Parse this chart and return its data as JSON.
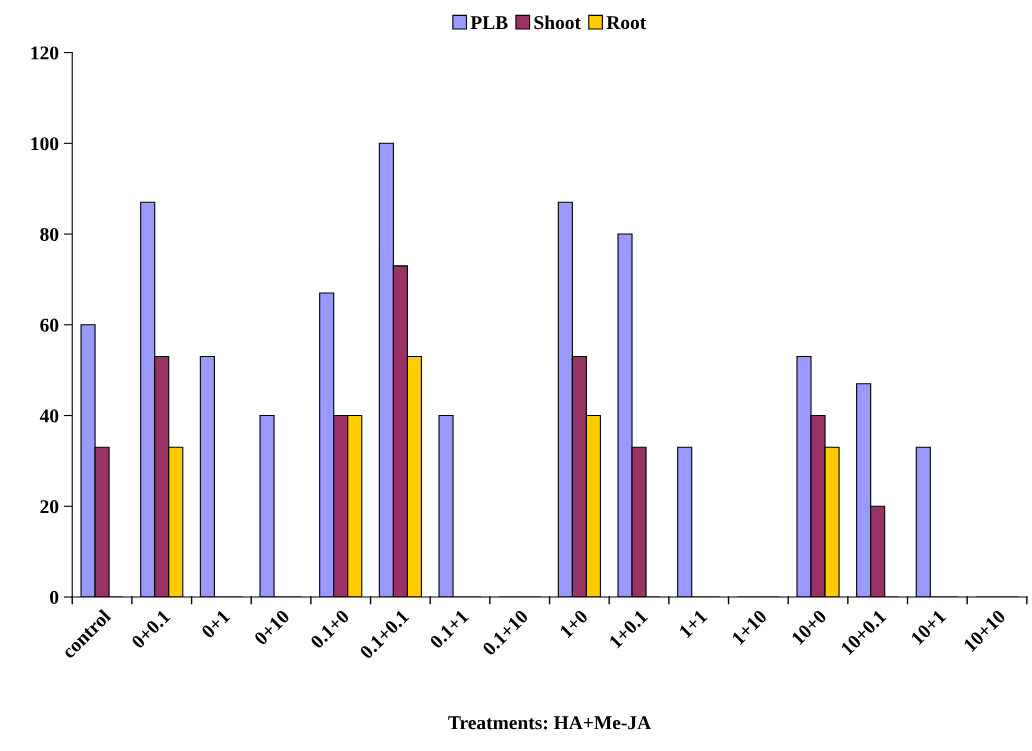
{
  "chart_data": {
    "type": "bar",
    "xlabel": "Treatments: HA+Me-JA",
    "categories": [
      "control",
      "0+0.1",
      "0+1",
      "0+10",
      "0.1+0",
      "0.1+0.1",
      "0.1+1",
      "0.1+10",
      "1+0",
      "1+0.1",
      "1+1",
      "1+10",
      "10+0",
      "10+0.1",
      "10+1",
      "10+10"
    ],
    "series": [
      {
        "name": "PLB",
        "color": "#9999ff",
        "values": [
          60,
          87,
          53,
          40,
          67,
          100,
          40,
          0,
          87,
          80,
          33,
          0,
          53,
          47,
          33,
          0
        ]
      },
      {
        "name": "Shoot",
        "color": "#993366",
        "values": [
          33,
          53,
          0,
          0,
          40,
          73,
          0,
          0,
          53,
          33,
          0,
          0,
          40,
          20,
          0,
          0
        ]
      },
      {
        "name": "Root",
        "color": "#ffcc00",
        "values": [
          0,
          33,
          0,
          0,
          40,
          53,
          0,
          0,
          40,
          0,
          0,
          0,
          33,
          0,
          0,
          0
        ]
      }
    ],
    "ylim": [
      0,
      120
    ],
    "yticks": [
      0,
      20,
      40,
      60,
      80,
      100,
      120
    ],
    "grid": false,
    "legend": "top"
  }
}
